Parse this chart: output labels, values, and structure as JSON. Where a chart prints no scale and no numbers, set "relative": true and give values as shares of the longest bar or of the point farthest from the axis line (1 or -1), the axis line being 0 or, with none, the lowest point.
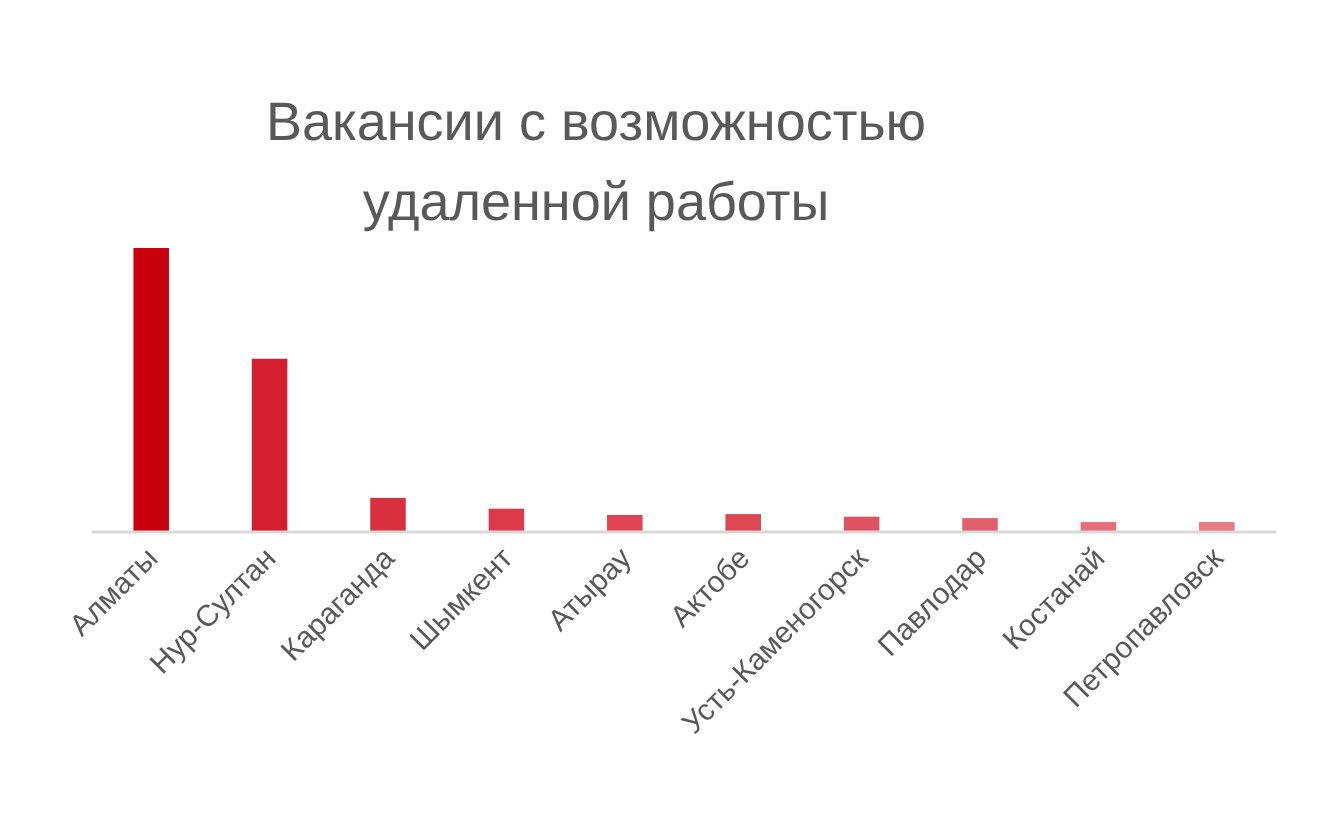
{
  "chart_data": {
    "type": "bar",
    "title": "Вакансии с возможностью удаленной работы",
    "relative": true,
    "categories": [
      "Алматы",
      "Нур-Султан",
      "Караганда",
      "Шымкент",
      "Атырау",
      "Актобе",
      "Усть-Каменогорск",
      "Павлодар",
      "Костанай",
      "Петропавловск"
    ],
    "values": [
      1,
      0.61,
      0.12,
      0.082,
      0.06,
      0.063,
      0.054,
      0.049,
      0.035,
      0.035
    ],
    "colors": [
      "#c8000e",
      "#d41e2e",
      "#d8303e",
      "#dc3a48",
      "#de4452",
      "#de4652",
      "#e05462",
      "#e2606c",
      "#e66c78",
      "#e87a84"
    ]
  }
}
